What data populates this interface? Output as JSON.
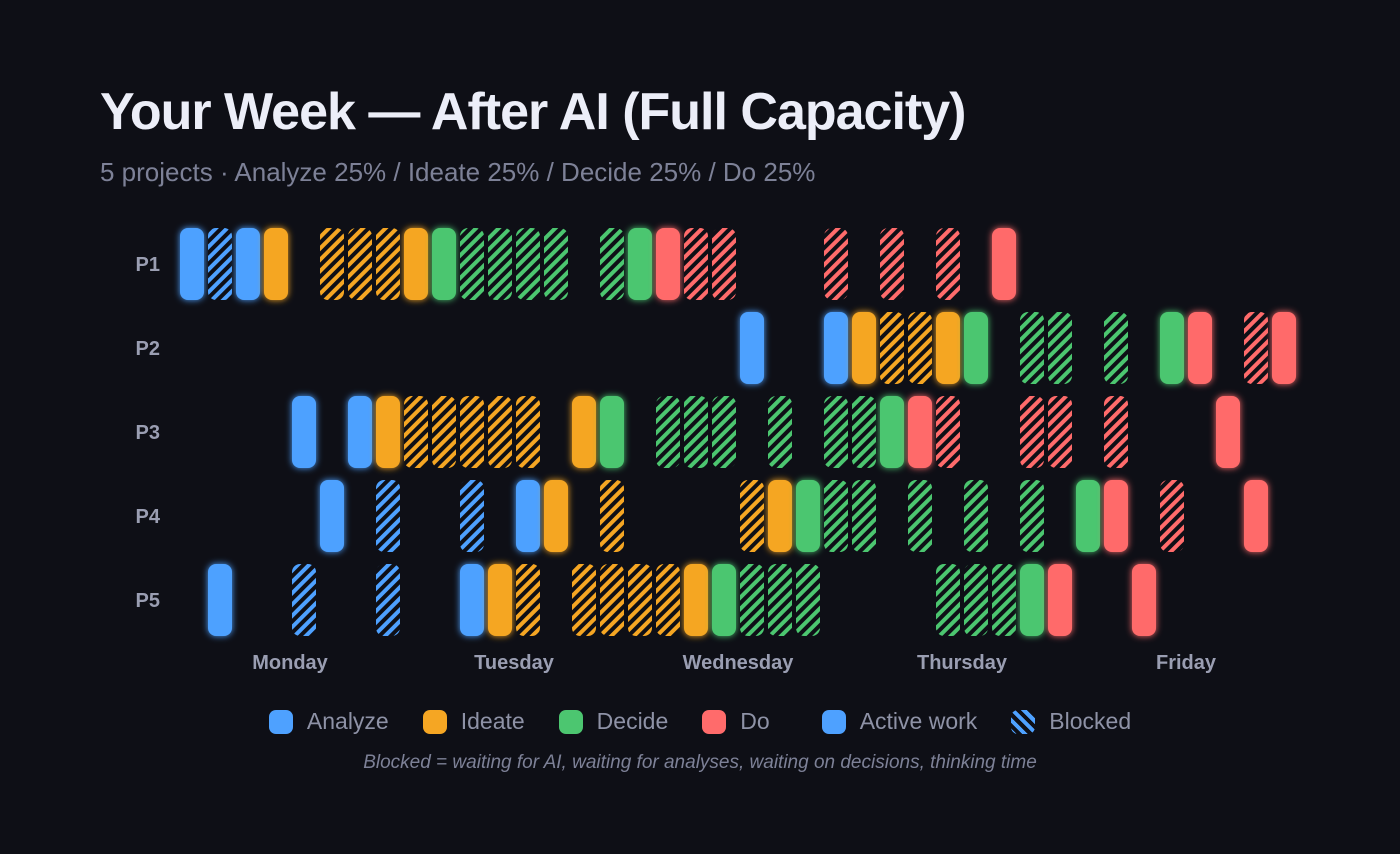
{
  "title": "Your Week — After AI (Full Capacity)",
  "subtitle": "5 projects · Analyze 25% / Ideate 25% / Decide 25% / Do 25%",
  "chart_data": {
    "type": "timeline",
    "title": "Your Week — After AI (Full Capacity)",
    "slot_unit": "time block",
    "total_slots": 40,
    "days": [
      "Monday",
      "Tuesday",
      "Wednesday",
      "Thursday",
      "Friday"
    ],
    "phases": [
      {
        "key": "A",
        "name": "Analyze",
        "color": "#4ea1ff"
      },
      {
        "key": "I",
        "name": "Ideate",
        "color": "#f5a623"
      },
      {
        "key": "D",
        "name": "Decide",
        "color": "#4cc670"
      },
      {
        "key": "O",
        "name": "Do",
        "color": "#ff6b6b"
      }
    ],
    "states": {
      "active": "Active work",
      "blocked": "Blocked"
    },
    "projects": [
      {
        "name": "P1",
        "blocks": [
          {
            "slot": 0,
            "phase": "A",
            "state": "active"
          },
          {
            "slot": 1,
            "phase": "A",
            "state": "blocked"
          },
          {
            "slot": 2,
            "phase": "A",
            "state": "active"
          },
          {
            "slot": 3,
            "phase": "I",
            "state": "active"
          },
          {
            "slot": 5,
            "phase": "I",
            "state": "blocked"
          },
          {
            "slot": 6,
            "phase": "I",
            "state": "blocked"
          },
          {
            "slot": 7,
            "phase": "I",
            "state": "blocked"
          },
          {
            "slot": 8,
            "phase": "I",
            "state": "active"
          },
          {
            "slot": 9,
            "phase": "D",
            "state": "active"
          },
          {
            "slot": 10,
            "phase": "D",
            "state": "blocked"
          },
          {
            "slot": 11,
            "phase": "D",
            "state": "blocked"
          },
          {
            "slot": 12,
            "phase": "D",
            "state": "blocked"
          },
          {
            "slot": 13,
            "phase": "D",
            "state": "blocked"
          },
          {
            "slot": 15,
            "phase": "D",
            "state": "blocked"
          },
          {
            "slot": 16,
            "phase": "D",
            "state": "active"
          },
          {
            "slot": 17,
            "phase": "O",
            "state": "active"
          },
          {
            "slot": 18,
            "phase": "O",
            "state": "blocked"
          },
          {
            "slot": 19,
            "phase": "O",
            "state": "blocked"
          },
          {
            "slot": 23,
            "phase": "O",
            "state": "blocked"
          },
          {
            "slot": 25,
            "phase": "O",
            "state": "blocked"
          },
          {
            "slot": 27,
            "phase": "O",
            "state": "blocked"
          },
          {
            "slot": 29,
            "phase": "O",
            "state": "active"
          }
        ]
      },
      {
        "name": "P2",
        "blocks": [
          {
            "slot": 20,
            "phase": "A",
            "state": "active"
          },
          {
            "slot": 23,
            "phase": "A",
            "state": "active"
          },
          {
            "slot": 24,
            "phase": "I",
            "state": "active"
          },
          {
            "slot": 25,
            "phase": "I",
            "state": "blocked"
          },
          {
            "slot": 26,
            "phase": "I",
            "state": "blocked"
          },
          {
            "slot": 27,
            "phase": "I",
            "state": "active"
          },
          {
            "slot": 28,
            "phase": "D",
            "state": "active"
          },
          {
            "slot": 30,
            "phase": "D",
            "state": "blocked"
          },
          {
            "slot": 31,
            "phase": "D",
            "state": "blocked"
          },
          {
            "slot": 33,
            "phase": "D",
            "state": "blocked"
          },
          {
            "slot": 35,
            "phase": "D",
            "state": "active"
          },
          {
            "slot": 36,
            "phase": "O",
            "state": "active"
          },
          {
            "slot": 38,
            "phase": "O",
            "state": "blocked"
          },
          {
            "slot": 39,
            "phase": "O",
            "state": "active"
          }
        ]
      },
      {
        "name": "P3",
        "blocks": [
          {
            "slot": 4,
            "phase": "A",
            "state": "active"
          },
          {
            "slot": 6,
            "phase": "A",
            "state": "active"
          },
          {
            "slot": 7,
            "phase": "I",
            "state": "active"
          },
          {
            "slot": 8,
            "phase": "I",
            "state": "blocked"
          },
          {
            "slot": 9,
            "phase": "I",
            "state": "blocked"
          },
          {
            "slot": 10,
            "phase": "I",
            "state": "blocked"
          },
          {
            "slot": 11,
            "phase": "I",
            "state": "blocked"
          },
          {
            "slot": 12,
            "phase": "I",
            "state": "blocked"
          },
          {
            "slot": 14,
            "phase": "I",
            "state": "active"
          },
          {
            "slot": 15,
            "phase": "D",
            "state": "active"
          },
          {
            "slot": 17,
            "phase": "D",
            "state": "blocked"
          },
          {
            "slot": 18,
            "phase": "D",
            "state": "blocked"
          },
          {
            "slot": 19,
            "phase": "D",
            "state": "blocked"
          },
          {
            "slot": 21,
            "phase": "D",
            "state": "blocked"
          },
          {
            "slot": 23,
            "phase": "D",
            "state": "blocked"
          },
          {
            "slot": 24,
            "phase": "D",
            "state": "blocked"
          },
          {
            "slot": 25,
            "phase": "D",
            "state": "active"
          },
          {
            "slot": 26,
            "phase": "O",
            "state": "active"
          },
          {
            "slot": 27,
            "phase": "O",
            "state": "blocked"
          },
          {
            "slot": 30,
            "phase": "O",
            "state": "blocked"
          },
          {
            "slot": 31,
            "phase": "O",
            "state": "blocked"
          },
          {
            "slot": 33,
            "phase": "O",
            "state": "blocked"
          },
          {
            "slot": 37,
            "phase": "O",
            "state": "active"
          }
        ]
      },
      {
        "name": "P4",
        "blocks": [
          {
            "slot": 5,
            "phase": "A",
            "state": "active"
          },
          {
            "slot": 7,
            "phase": "A",
            "state": "blocked"
          },
          {
            "slot": 10,
            "phase": "A",
            "state": "blocked"
          },
          {
            "slot": 12,
            "phase": "A",
            "state": "active"
          },
          {
            "slot": 13,
            "phase": "I",
            "state": "active"
          },
          {
            "slot": 15,
            "phase": "I",
            "state": "blocked"
          },
          {
            "slot": 20,
            "phase": "I",
            "state": "blocked"
          },
          {
            "slot": 21,
            "phase": "I",
            "state": "active"
          },
          {
            "slot": 22,
            "phase": "D",
            "state": "active"
          },
          {
            "slot": 23,
            "phase": "D",
            "state": "blocked"
          },
          {
            "slot": 24,
            "phase": "D",
            "state": "blocked"
          },
          {
            "slot": 26,
            "phase": "D",
            "state": "blocked"
          },
          {
            "slot": 28,
            "phase": "D",
            "state": "blocked"
          },
          {
            "slot": 30,
            "phase": "D",
            "state": "blocked"
          },
          {
            "slot": 32,
            "phase": "D",
            "state": "active"
          },
          {
            "slot": 33,
            "phase": "O",
            "state": "active"
          },
          {
            "slot": 35,
            "phase": "O",
            "state": "blocked"
          },
          {
            "slot": 38,
            "phase": "O",
            "state": "active"
          }
        ]
      },
      {
        "name": "P5",
        "blocks": [
          {
            "slot": 1,
            "phase": "A",
            "state": "active"
          },
          {
            "slot": 4,
            "phase": "A",
            "state": "blocked"
          },
          {
            "slot": 7,
            "phase": "A",
            "state": "blocked"
          },
          {
            "slot": 10,
            "phase": "A",
            "state": "active"
          },
          {
            "slot": 11,
            "phase": "I",
            "state": "active"
          },
          {
            "slot": 12,
            "phase": "I",
            "state": "blocked"
          },
          {
            "slot": 14,
            "phase": "I",
            "state": "blocked"
          },
          {
            "slot": 15,
            "phase": "I",
            "state": "blocked"
          },
          {
            "slot": 16,
            "phase": "I",
            "state": "blocked"
          },
          {
            "slot": 17,
            "phase": "I",
            "state": "blocked"
          },
          {
            "slot": 18,
            "phase": "I",
            "state": "active"
          },
          {
            "slot": 19,
            "phase": "D",
            "state": "active"
          },
          {
            "slot": 20,
            "phase": "D",
            "state": "blocked"
          },
          {
            "slot": 21,
            "phase": "D",
            "state": "blocked"
          },
          {
            "slot": 22,
            "phase": "D",
            "state": "blocked"
          },
          {
            "slot": 27,
            "phase": "D",
            "state": "blocked"
          },
          {
            "slot": 28,
            "phase": "D",
            "state": "blocked"
          },
          {
            "slot": 29,
            "phase": "D",
            "state": "blocked"
          },
          {
            "slot": 30,
            "phase": "D",
            "state": "active"
          },
          {
            "slot": 31,
            "phase": "O",
            "state": "active"
          },
          {
            "slot": 34,
            "phase": "O",
            "state": "active"
          }
        ]
      }
    ],
    "legend": [
      "Analyze",
      "Ideate",
      "Decide",
      "Do",
      "Active work",
      "Blocked"
    ]
  },
  "legend": {
    "analyze": "Analyze",
    "ideate": "Ideate",
    "decide": "Decide",
    "do": "Do",
    "active": "Active work",
    "blocked": "Blocked"
  },
  "colors": {
    "background": "#0e0f16",
    "analyze": "#4ea1ff",
    "ideate": "#f5a623",
    "decide": "#4cc670",
    "do": "#ff6b6b"
  },
  "note": "Blocked = waiting for AI, waiting for analyses, waiting on decisions, thinking time"
}
